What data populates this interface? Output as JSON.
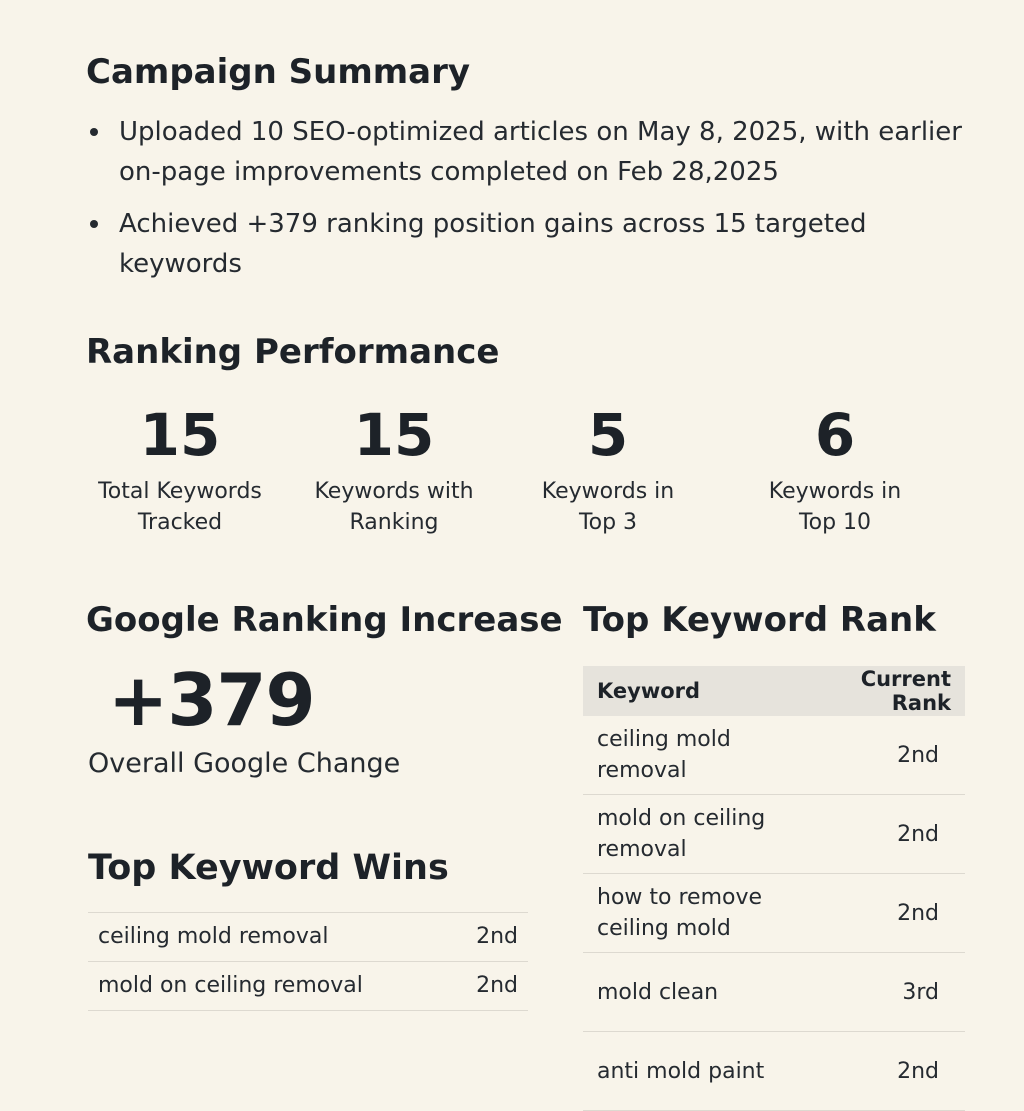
{
  "campaign_summary": {
    "title": "Campaign Summary",
    "bullets": [
      "Uploaded 10 SEO-optimized articles on May 8, 2025, with earlier on-page improvements completed on Feb 28,2025",
      "Achieved +379 ranking position gains across 15 targeted keywords"
    ]
  },
  "ranking_performance": {
    "title": "Ranking Performance",
    "stats": [
      {
        "value": "15",
        "label": "Total Keywords Tracked"
      },
      {
        "value": "15",
        "label": "Keywords with Ranking"
      },
      {
        "value": "5",
        "label": "Keywords in Top 3"
      },
      {
        "value": "6",
        "label": "Keywords in Top 10"
      }
    ]
  },
  "google_ranking_increase": {
    "title": "Google Ranking Increase",
    "value": "+379",
    "label": "Overall Google Change"
  },
  "top_keyword_rank": {
    "title": "Top Keyword Rank",
    "columns": [
      "Keyword",
      "Current Rank"
    ],
    "rows": [
      {
        "keyword": "ceiling mold removal",
        "rank": "2nd"
      },
      {
        "keyword": "mold on ceiling removal",
        "rank": "2nd"
      },
      {
        "keyword": "how to remove ceiling mold",
        "rank": "2nd"
      },
      {
        "keyword": "mold clean",
        "rank": "3rd"
      },
      {
        "keyword": "anti mold paint",
        "rank": "2nd"
      }
    ]
  },
  "top_keyword_wins": {
    "title": "Top Keyword Wins",
    "rows": [
      {
        "keyword": "ceiling mold removal",
        "rank": "2nd"
      },
      {
        "keyword": "mold on ceiling removal",
        "rank": "2nd"
      }
    ]
  }
}
